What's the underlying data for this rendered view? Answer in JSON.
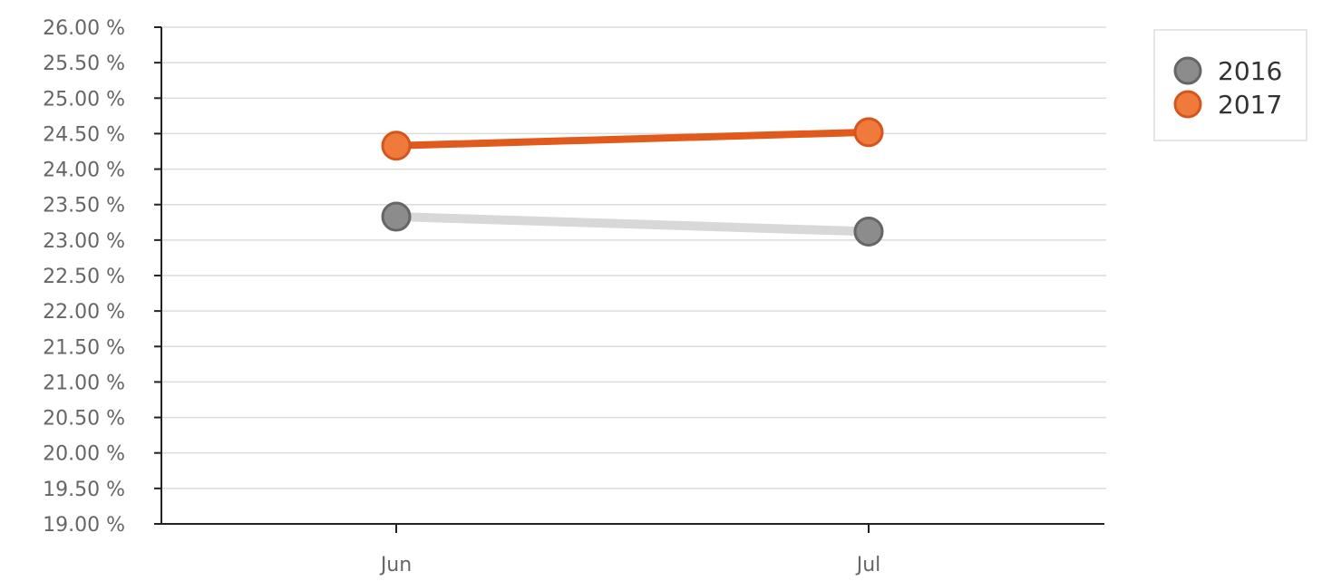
{
  "chart_data": {
    "type": "line",
    "categories": [
      "Jun",
      "Jul"
    ],
    "series": [
      {
        "name": "2016",
        "values": [
          23.33,
          23.12
        ],
        "line_color": "#d8d8d8",
        "marker_color": "#8c8c8c",
        "marker_stroke": "#666666"
      },
      {
        "name": "2017",
        "values": [
          24.33,
          24.52
        ],
        "line_color": "#e05a1e",
        "marker_color": "#f07a3c",
        "marker_stroke": "#d4561c"
      }
    ],
    "ylim": [
      19.0,
      26.0
    ],
    "y_ticks": [
      19.0,
      19.5,
      20.0,
      20.5,
      21.0,
      21.5,
      22.0,
      22.5,
      23.0,
      23.5,
      24.0,
      24.5,
      25.0,
      25.5,
      26.0
    ],
    "y_tick_labels": [
      "19.00 %",
      "19.50 %",
      "20.00 %",
      "20.50 %",
      "21.00 %",
      "21.50 %",
      "22.00 %",
      "22.50 %",
      "23.00 %",
      "23.50 %",
      "24.00 %",
      "24.50 %",
      "25.00 %",
      "25.50 %",
      "26.00 %"
    ],
    "x_tick_labels": [
      "Jun",
      "Jul"
    ],
    "grid": true,
    "legend_position": "top-right"
  }
}
